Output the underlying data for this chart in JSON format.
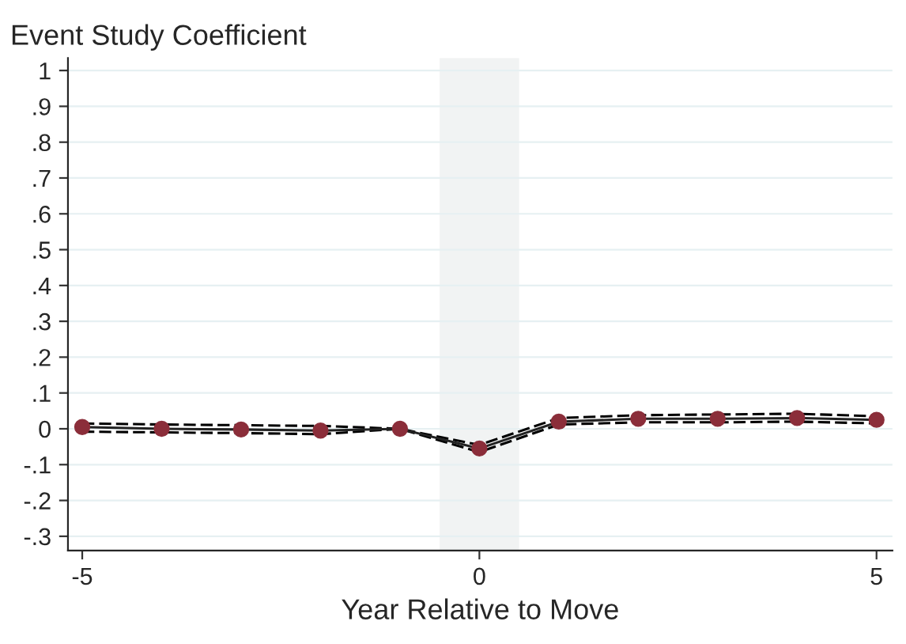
{
  "chart_data": {
    "type": "line",
    "title": "Event Study Coefficient",
    "xlabel": "Year Relative to Move",
    "x": [
      -5,
      -4,
      -3,
      -2,
      -1,
      0,
      1,
      2,
      3,
      4,
      5
    ],
    "series": [
      {
        "color": "#000000",
        "line_style": "dashed",
        "marker": "none",
        "values": [
          0.015,
          0.012,
          0.01,
          0.008,
          0,
          -0.045,
          0.03,
          0.038,
          0.04,
          0.042,
          0.035
        ]
      },
      {
        "color": "#000000",
        "line_style": "dashed",
        "marker": "none",
        "values": [
          -0.008,
          -0.01,
          -0.012,
          -0.015,
          0,
          -0.065,
          0.012,
          0.018,
          0.018,
          0.02,
          0.015
        ]
      },
      {
        "color": "#8b2e3a",
        "line_style": "solid",
        "marker": "circle",
        "values": [
          0.005,
          0,
          -0.002,
          -0.005,
          0,
          -0.055,
          0.02,
          0.028,
          0.028,
          0.03,
          0.025
        ]
      }
    ],
    "xlim": [
      -5.18,
      5.2
    ],
    "xticks": [
      {
        "value": -5,
        "label": "-5"
      },
      0,
      5
    ],
    "ylim": [
      -0.34,
      1.035
    ],
    "yticks": [
      {
        "value": -0.3,
        "label": "-.3"
      },
      {
        "value": -0.2,
        "label": "-.2"
      },
      {
        "value": -0.1,
        "label": "-.1"
      },
      0,
      {
        "value": 0.1,
        "label": ".1"
      },
      {
        "value": 0.2,
        "label": ".2"
      },
      {
        "value": 0.3,
        "label": ".3"
      },
      {
        "value": 0.4,
        "label": ".4"
      },
      {
        "value": 0.5,
        "label": ".5"
      },
      {
        "value": 0.6,
        "label": ".6"
      },
      {
        "value": 0.7,
        "label": ".7"
      },
      {
        "value": 0.8,
        "label": ".8"
      },
      {
        "value": 0.9,
        "label": ".9"
      },
      1
    ],
    "bands": [
      {
        "axis": "x",
        "from": -0.5,
        "to": 0.5,
        "color": "#f1f3f3"
      }
    ],
    "grid": "y",
    "legend": false
  }
}
